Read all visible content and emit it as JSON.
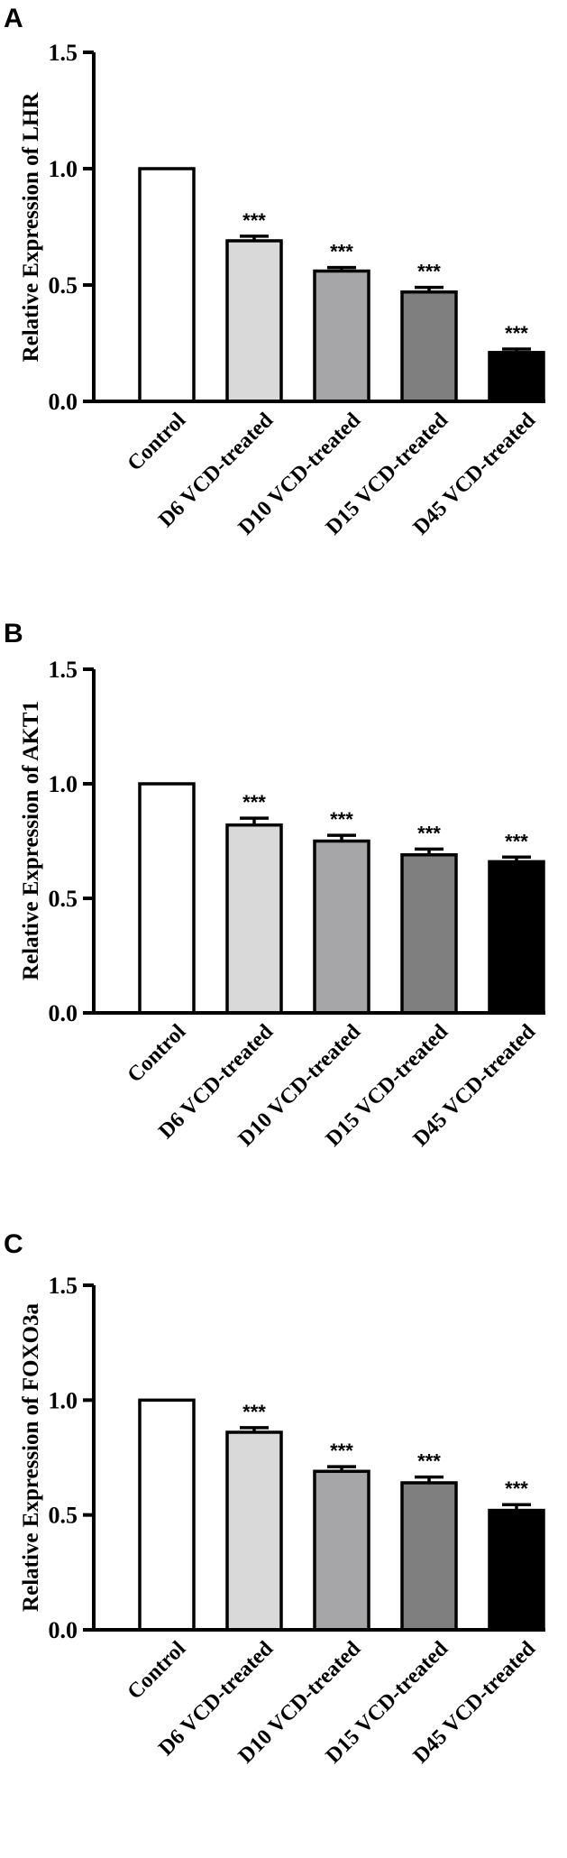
{
  "chart_data": [
    {
      "type": "bar",
      "panel": "A",
      "ylabel": "Relative Expression of LHR",
      "ylim": [
        0,
        1.5
      ],
      "yticks": [
        "0.0",
        "0.5",
        "1.0",
        "1.5"
      ],
      "categories": [
        "Control",
        "D6 VCD-treated",
        "D10 VCD-treated",
        "D15 VCD-treated",
        "D45 VCD-treated"
      ],
      "values": [
        1.0,
        0.69,
        0.56,
        0.47,
        0.21
      ],
      "errors": [
        0,
        0.02,
        0.015,
        0.02,
        0.015
      ],
      "significance": [
        "",
        "***",
        "***",
        "***",
        "***"
      ],
      "colors": [
        "#ffffff",
        "#d9d9d9",
        "#a6a6a8",
        "#7f7f7f",
        "#000000"
      ]
    },
    {
      "type": "bar",
      "panel": "B",
      "ylabel": "Relative Expression of AKT1",
      "ylim": [
        0,
        1.5
      ],
      "yticks": [
        "0.0",
        "0.5",
        "1.0",
        "1.5"
      ],
      "categories": [
        "Control",
        "D6 VCD-treated",
        "D10 VCD-treated",
        "D15 VCD-treated",
        "D45 VCD-treated"
      ],
      "values": [
        1.0,
        0.82,
        0.75,
        0.69,
        0.66
      ],
      "errors": [
        0,
        0.03,
        0.025,
        0.025,
        0.02
      ],
      "significance": [
        "",
        "***",
        "***",
        "***",
        "***"
      ],
      "colors": [
        "#ffffff",
        "#d9d9d9",
        "#a6a6a8",
        "#7f7f7f",
        "#000000"
      ]
    },
    {
      "type": "bar",
      "panel": "C",
      "ylabel": "Relative Expression of FOXO3a",
      "ylim": [
        0,
        1.5
      ],
      "yticks": [
        "0.0",
        "0.5",
        "1.0",
        "1.5"
      ],
      "categories": [
        "Control",
        "D6 VCD-treated",
        "D10 VCD-treated",
        "D15 VCD-treated",
        "D45 VCD-treated"
      ],
      "values": [
        1.0,
        0.86,
        0.69,
        0.64,
        0.52
      ],
      "errors": [
        0,
        0.02,
        0.02,
        0.025,
        0.025
      ],
      "significance": [
        "",
        "***",
        "***",
        "***",
        "***"
      ],
      "colors": [
        "#ffffff",
        "#d9d9d9",
        "#a6a6a8",
        "#7f7f7f",
        "#000000"
      ]
    }
  ]
}
